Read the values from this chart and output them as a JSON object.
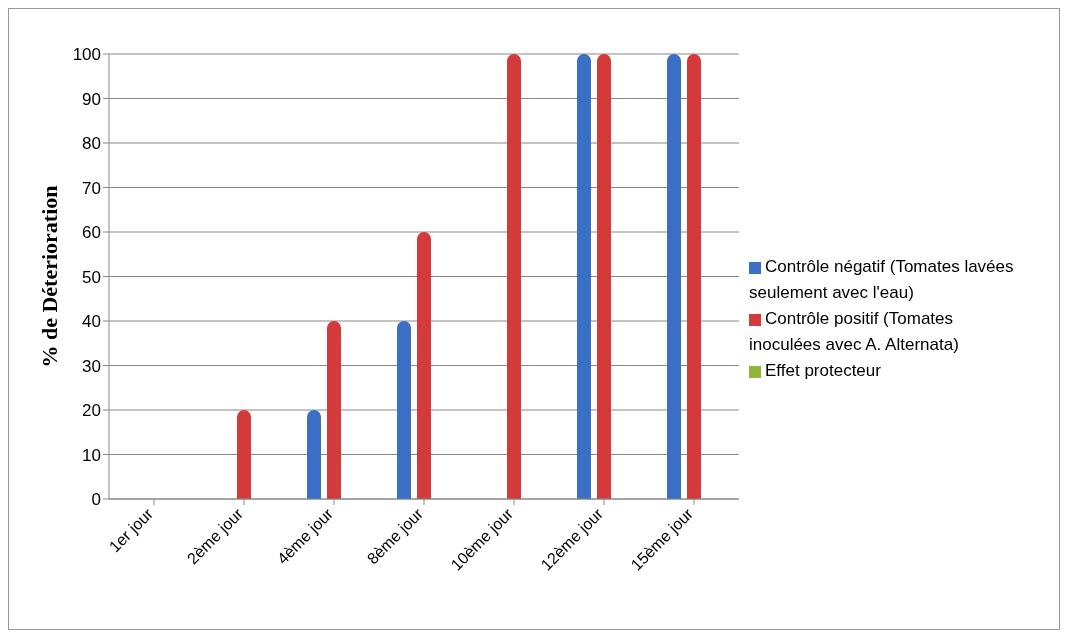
{
  "chart_data": {
    "type": "bar",
    "ylabel": "% de Déterioration",
    "categories": [
      "1er jour",
      "2ème jour",
      "4ème jour",
      "8ème jour",
      "10ème jour",
      "12ème jour",
      "15ème jour"
    ],
    "series": [
      {
        "name": "Contrôle  négatif (Tomates lavées seulement avec l'eau)",
        "color": "#3a6fc4",
        "values": [
          0,
          0,
          20,
          40,
          0,
          100,
          100
        ]
      },
      {
        "name": "Contrôle  positif (Tomates inoculées  avec A. Alternata)",
        "color": "#d43a3a",
        "values": [
          0,
          20,
          40,
          60,
          100,
          100,
          100
        ]
      },
      {
        "name": "Effet protecteur",
        "color": "#8fb83a",
        "values": [
          0,
          0,
          0,
          0,
          0,
          0,
          0
        ]
      }
    ],
    "ylim": [
      0,
      100
    ],
    "yticks": [
      0,
      10,
      20,
      30,
      40,
      50,
      60,
      70,
      80,
      90,
      100
    ],
    "grid": "y",
    "legend": "right"
  }
}
